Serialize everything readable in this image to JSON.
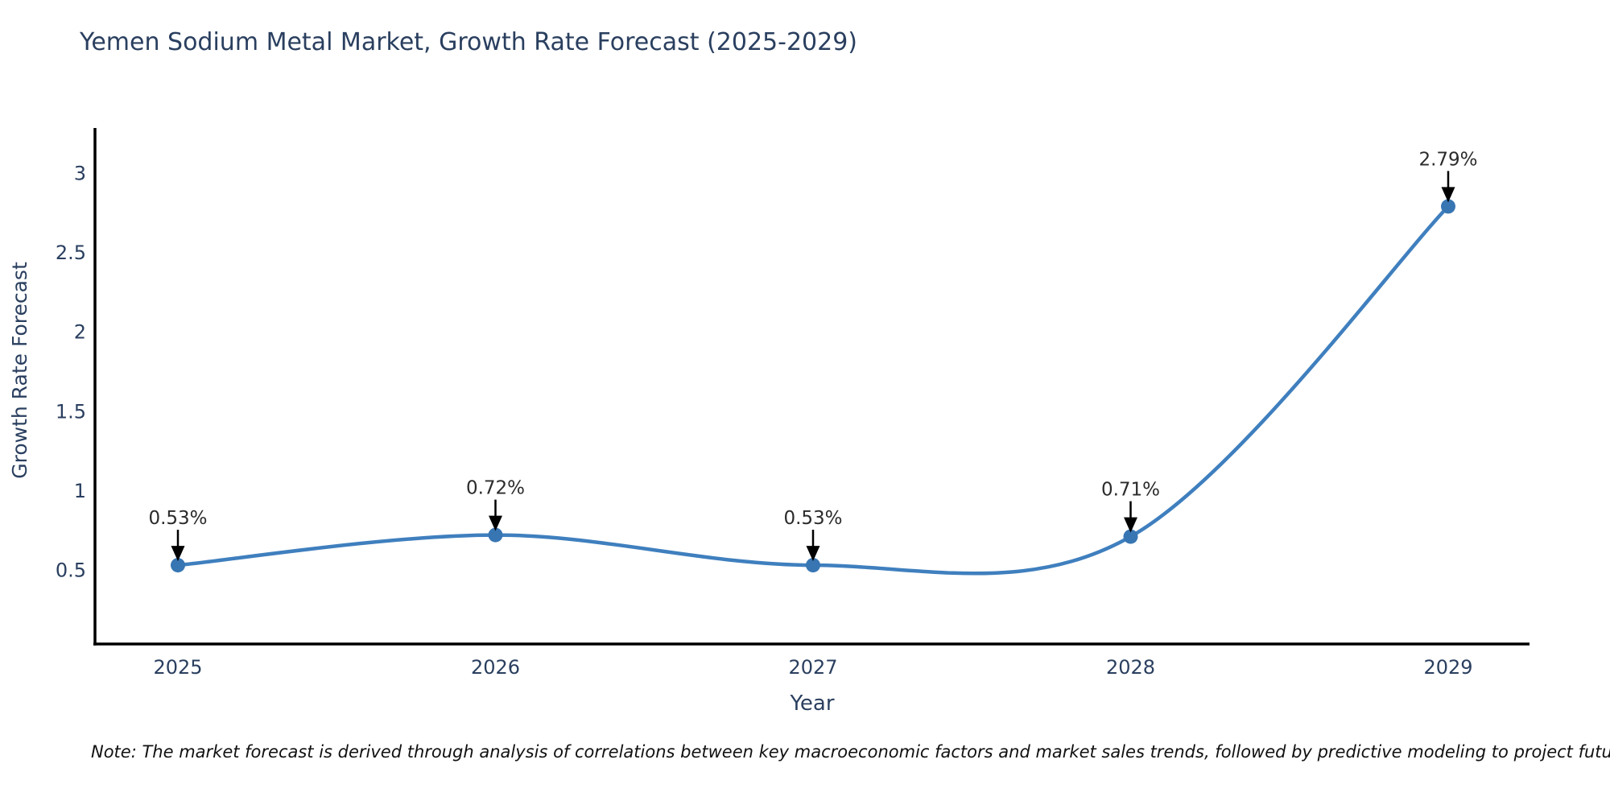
{
  "title": {
    "text": "Yemen Sodium Metal Market, Growth Rate Forecast (2025-2029)"
  },
  "note": {
    "text": "Note: The market forecast is derived through analysis of correlations between key macroeconomic factors and market sales trends, followed by predictive modeling to project future sales"
  },
  "chart_data": {
    "type": "line",
    "title": "Yemen Sodium Metal Market, Growth Rate Forecast (2025-2029)",
    "xlabel": "Year",
    "ylabel": "Growth Rate Forecast",
    "x": [
      2025,
      2026,
      2027,
      2028,
      2029
    ],
    "series": [
      {
        "name": "Growth Rate Forecast",
        "values": [
          0.53,
          0.72,
          0.53,
          0.71,
          2.79
        ]
      }
    ],
    "point_labels": [
      "0.53%",
      "0.72%",
      "0.53%",
      "0.71%",
      "2.79%"
    ],
    "y_ticks": [
      0.5,
      1,
      1.5,
      2,
      2.5,
      3
    ],
    "ylim": [
      0.03,
      3.28
    ],
    "xlim": [
      2024.74,
      2030.02
    ],
    "line_shape": "spline",
    "grid": false,
    "legend_position": "none",
    "colors": {
      "line": "#3f7fbe",
      "marker": "#3876b3",
      "axis": "#000000",
      "text": "#2a3f5f",
      "annotation": "#2b2b2b",
      "background": "#ffffff"
    }
  }
}
